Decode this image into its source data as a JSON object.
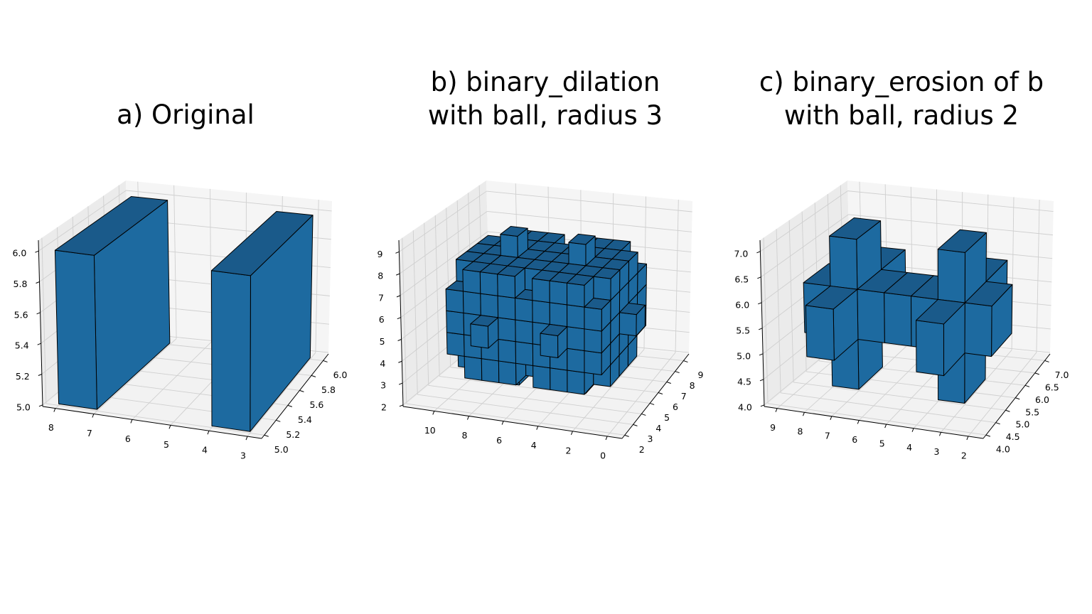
{
  "figure": {
    "face_color": "#1d6aa0",
    "top_color": "#1a5a8a",
    "edge_color": "#000000"
  },
  "chart_data": [
    {
      "type": "voxel",
      "title": "a) Original",
      "xlim": [
        2.63,
        8.33
      ],
      "ylim": [
        4.955,
        6.09
      ],
      "zlim": [
        4.99,
        6.07
      ],
      "x_ticks": [
        "8",
        "7",
        "6",
        "5",
        "4",
        "3"
      ],
      "x_tick_values": [
        8,
        7,
        6,
        5,
        4,
        3
      ],
      "y_ticks": [
        "5.0",
        "5.2",
        "5.4",
        "5.6",
        "5.8",
        "6.0"
      ],
      "y_tick_values": [
        5.0,
        5.2,
        5.4,
        5.6,
        5.8,
        6.0
      ],
      "z_ticks": [
        "5.0",
        "5.2",
        "5.4",
        "5.6",
        "5.8",
        "6.0"
      ],
      "z_tick_values": [
        5.0,
        5.2,
        5.4,
        5.6,
        5.8,
        6.0
      ],
      "grid": true,
      "voxels": [
        [
          7,
          5,
          5
        ],
        [
          3,
          5,
          5
        ]
      ]
    },
    {
      "type": "voxel",
      "title": "b) binary_dilation\nwith ball, radius 3",
      "xlim": [
        -0.86,
        11.8
      ],
      "ylim": [
        1.69,
        9.64
      ],
      "zlim": [
        1.93,
        9.53
      ],
      "x_ticks": [
        "10",
        "8",
        "6",
        "4",
        "2",
        "0"
      ],
      "x_tick_values": [
        10,
        8,
        6,
        4,
        2,
        0
      ],
      "y_ticks": [
        "2",
        "3",
        "4",
        "5",
        "6",
        "7",
        "8",
        "9"
      ],
      "y_tick_values": [
        2,
        3,
        4,
        5,
        6,
        7,
        8,
        9
      ],
      "z_ticks": [
        "2",
        "3",
        "4",
        "5",
        "6",
        "7",
        "8",
        "9"
      ],
      "z_tick_values": [
        2,
        3,
        4,
        5,
        6,
        7,
        8,
        9
      ],
      "grid": true,
      "voxels_operation": {
        "operation": "binary_dilation",
        "of": "a",
        "structuring_element": "ball",
        "radius": 3
      }
    },
    {
      "type": "voxel",
      "title": "c) binary_erosion of b\nwith ball, radius 2",
      "xlim": [
        1.45,
        9.47
      ],
      "ylim": [
        3.86,
        7.27
      ],
      "zlim": [
        3.97,
        7.22
      ],
      "x_ticks": [
        "9",
        "8",
        "7",
        "6",
        "5",
        "4",
        "3",
        "2"
      ],
      "x_tick_values": [
        9,
        8,
        7,
        6,
        5,
        4,
        3,
        2
      ],
      "y_ticks": [
        "4.0",
        "4.5",
        "5.0",
        "5.5",
        "6.0",
        "6.5",
        "7.0"
      ],
      "y_tick_values": [
        4.0,
        4.5,
        5.0,
        5.5,
        6.0,
        6.5,
        7.0
      ],
      "z_ticks": [
        "4.0",
        "4.5",
        "5.0",
        "5.5",
        "6.0",
        "6.5",
        "7.0"
      ],
      "z_tick_values": [
        4.0,
        4.5,
        5.0,
        5.5,
        6.0,
        6.5,
        7.0
      ],
      "grid": true,
      "voxels": [
        [
          2,
          5,
          5
        ],
        [
          3,
          5,
          5
        ],
        [
          4,
          5,
          5
        ],
        [
          3,
          4,
          5
        ],
        [
          3,
          6,
          5
        ],
        [
          3,
          5,
          4
        ],
        [
          3,
          5,
          6
        ],
        [
          5,
          5,
          5
        ],
        [
          6,
          5,
          5
        ],
        [
          7,
          5,
          5
        ],
        [
          8,
          5,
          5
        ],
        [
          7,
          4,
          5
        ],
        [
          7,
          6,
          5
        ],
        [
          7,
          5,
          4
        ],
        [
          7,
          5,
          6
        ]
      ]
    }
  ]
}
